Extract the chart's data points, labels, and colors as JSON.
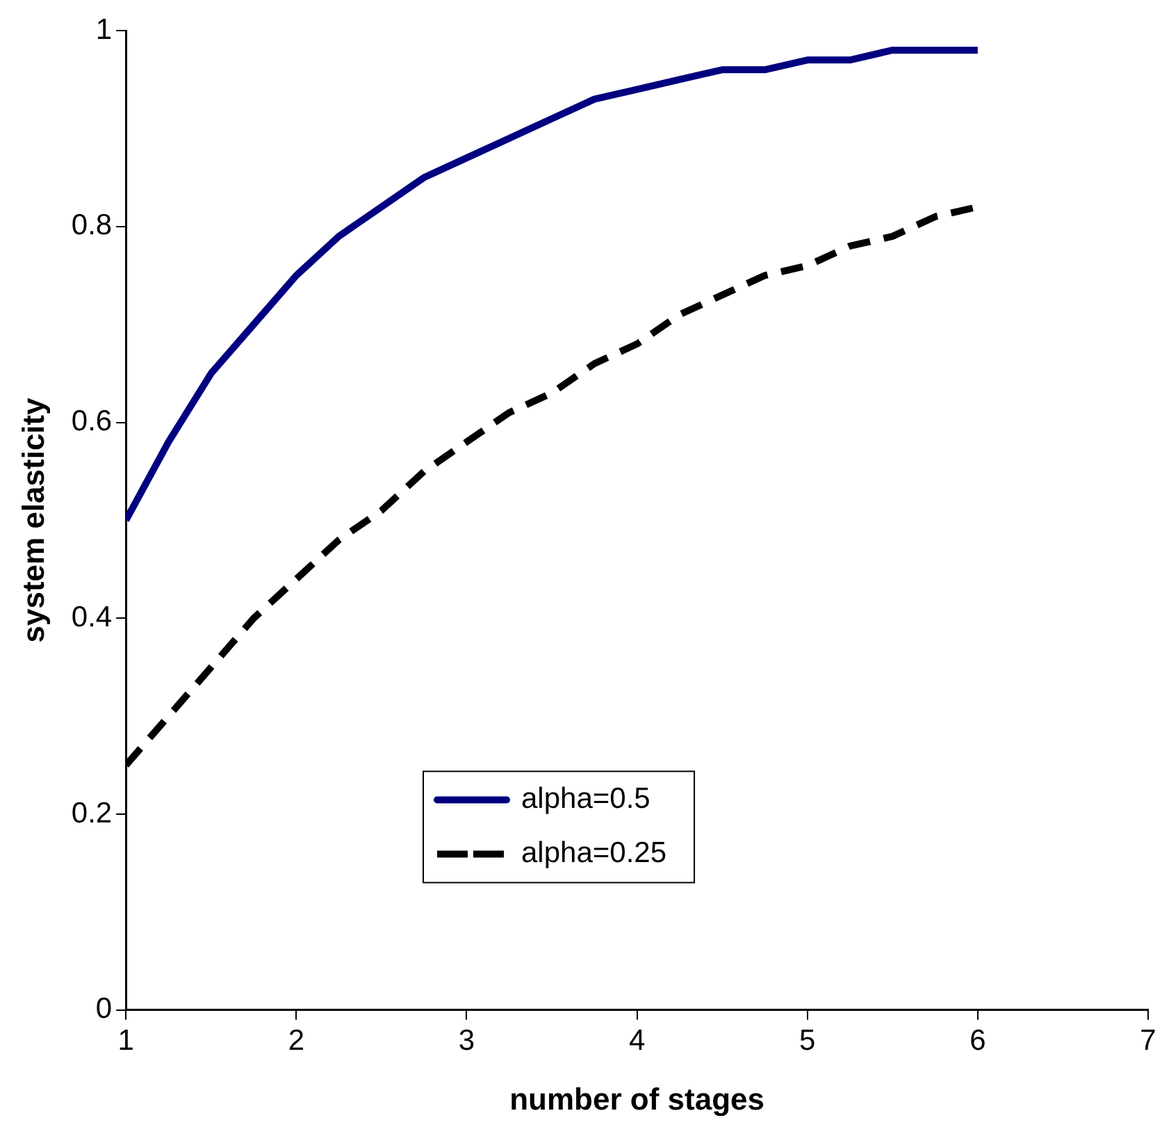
{
  "chart_data": {
    "type": "line",
    "xlabel": "number of stages",
    "ylabel": "system elasticity",
    "x": [
      1,
      1.25,
      1.5,
      1.75,
      2,
      2.25,
      2.5,
      2.75,
      3,
      3.25,
      3.5,
      3.75,
      4,
      4.25,
      4.5,
      4.75,
      5,
      5.25,
      5.5,
      5.75,
      6
    ],
    "series": [
      {
        "name": "alpha=0.5",
        "color": "#000080",
        "line_style": "solid",
        "values": [
          0.5,
          0.58,
          0.65,
          0.7,
          0.75,
          0.79,
          0.82,
          0.85,
          0.87,
          0.89,
          0.91,
          0.93,
          0.94,
          0.95,
          0.96,
          0.96,
          0.97,
          0.97,
          0.98,
          0.98,
          0.98
        ]
      },
      {
        "name": "alpha=0.25",
        "color": "#000000",
        "line_style": "dashed",
        "values": [
          0.25,
          0.3,
          0.35,
          0.4,
          0.44,
          0.48,
          0.51,
          0.55,
          0.58,
          0.61,
          0.63,
          0.66,
          0.68,
          0.71,
          0.73,
          0.75,
          0.76,
          0.78,
          0.79,
          0.81,
          0.82
        ]
      }
    ],
    "xlim": [
      1,
      7
    ],
    "xticks": [
      1,
      2,
      3,
      4,
      5,
      6,
      7
    ],
    "ylim": [
      0,
      1
    ],
    "yticks": [
      0,
      0.2,
      0.4,
      0.6,
      0.8,
      1
    ],
    "grid": false,
    "legend": "bottom",
    "marker": "none"
  }
}
